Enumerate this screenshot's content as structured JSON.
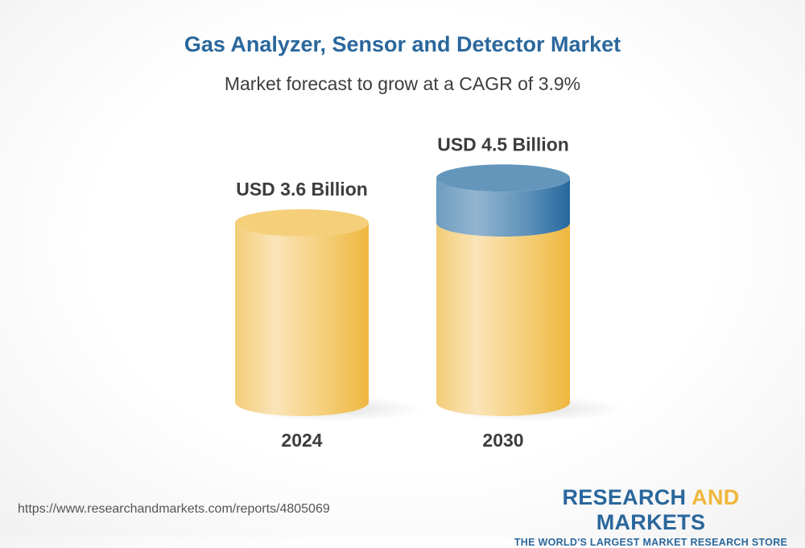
{
  "header": {
    "title": "Gas Analyzer, Sensor and Detector Market",
    "subtitle": "Market forecast to grow at a CAGR of 3.9%"
  },
  "chart_data": {
    "type": "bar",
    "style": "3d-cylinder",
    "categories": [
      "2024",
      "2030"
    ],
    "values": [
      3.6,
      4.5
    ],
    "data_labels": [
      "USD 3.6 Billion",
      "USD 4.5 Billion"
    ],
    "unit": "USD Billion",
    "title": "Gas Analyzer, Sensor and Detector Market",
    "subtitle": "Market forecast to grow at a CAGR of 3.9%",
    "xlabel": "",
    "ylabel": "",
    "grid": false,
    "colors": {
      "base": "#f0b73e",
      "growth": "#2a679c"
    }
  },
  "footer": {
    "url": "https://www.researchandmarkets.com/reports/4805069",
    "logo_part1": "RESEARCH ",
    "logo_part2": "AND",
    "logo_part3": " MARKETS",
    "tagline": "THE WORLD'S LARGEST MARKET RESEARCH STORE"
  }
}
